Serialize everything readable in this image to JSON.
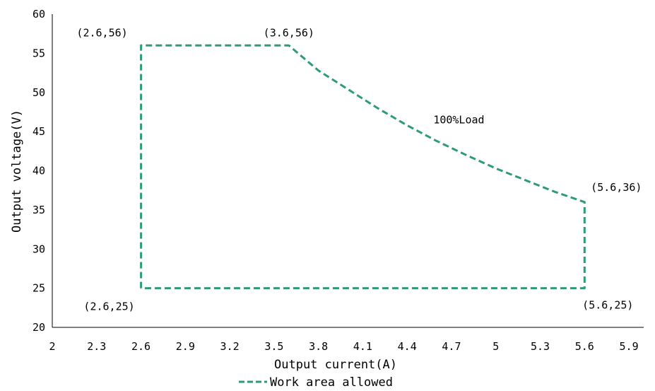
{
  "chart_data": {
    "type": "line",
    "title": "",
    "xlabel": "Output current(A)",
    "ylabel": "Output voltage(V)",
    "xlim": [
      2,
      6.0
    ],
    "ylim": [
      20,
      60
    ],
    "x_ticks": [
      2,
      2.3,
      2.6,
      2.9,
      3.2,
      3.5,
      3.8,
      4.1,
      4.4,
      4.7,
      5,
      5.3,
      5.6,
      5.9
    ],
    "x_tick_labels": [
      "2",
      "2.3",
      "2.6",
      "2.9",
      "3.2",
      "3.5",
      "3.8",
      "4.1",
      "4.4",
      "4.7",
      "5",
      "5.3",
      "5.6",
      "5.9"
    ],
    "y_ticks": [
      20,
      25,
      30,
      35,
      40,
      45,
      50,
      55,
      60
    ],
    "y_tick_labels": [
      "20",
      "25",
      "30",
      "35",
      "40",
      "45",
      "50",
      "55",
      "60"
    ],
    "grid": false,
    "legend": "bottom",
    "series": [
      {
        "name": "Work area allowed",
        "color": "#2e9b74",
        "style": "dashed",
        "x": [
          2.6,
          2.6,
          3.6,
          3.8,
          4.0,
          4.2,
          4.4,
          4.6,
          4.8,
          5.0,
          5.2,
          5.4,
          5.6,
          5.6,
          2.6
        ],
        "y": [
          25,
          56,
          56,
          52.8,
          50.4,
          48.0,
          45.8,
          43.8,
          42.0,
          40.3,
          38.8,
          37.3,
          36,
          25,
          25
        ]
      }
    ],
    "annotations": [
      {
        "text": "(2.6,56)",
        "x": 2.6,
        "y": 56,
        "anchor": "above-left"
      },
      {
        "text": "(3.6,56)",
        "x": 3.6,
        "y": 56,
        "anchor": "above"
      },
      {
        "text": "(5.6,36)",
        "x": 5.6,
        "y": 36,
        "anchor": "above-right"
      },
      {
        "text": "(2.6,25)",
        "x": 2.6,
        "y": 25,
        "anchor": "below-left"
      },
      {
        "text": "(5.6,25)",
        "x": 5.6,
        "y": 25,
        "anchor": "below-right"
      },
      {
        "text": "100%Load",
        "x": 4.75,
        "y": 46.5,
        "anchor": "center"
      }
    ]
  }
}
